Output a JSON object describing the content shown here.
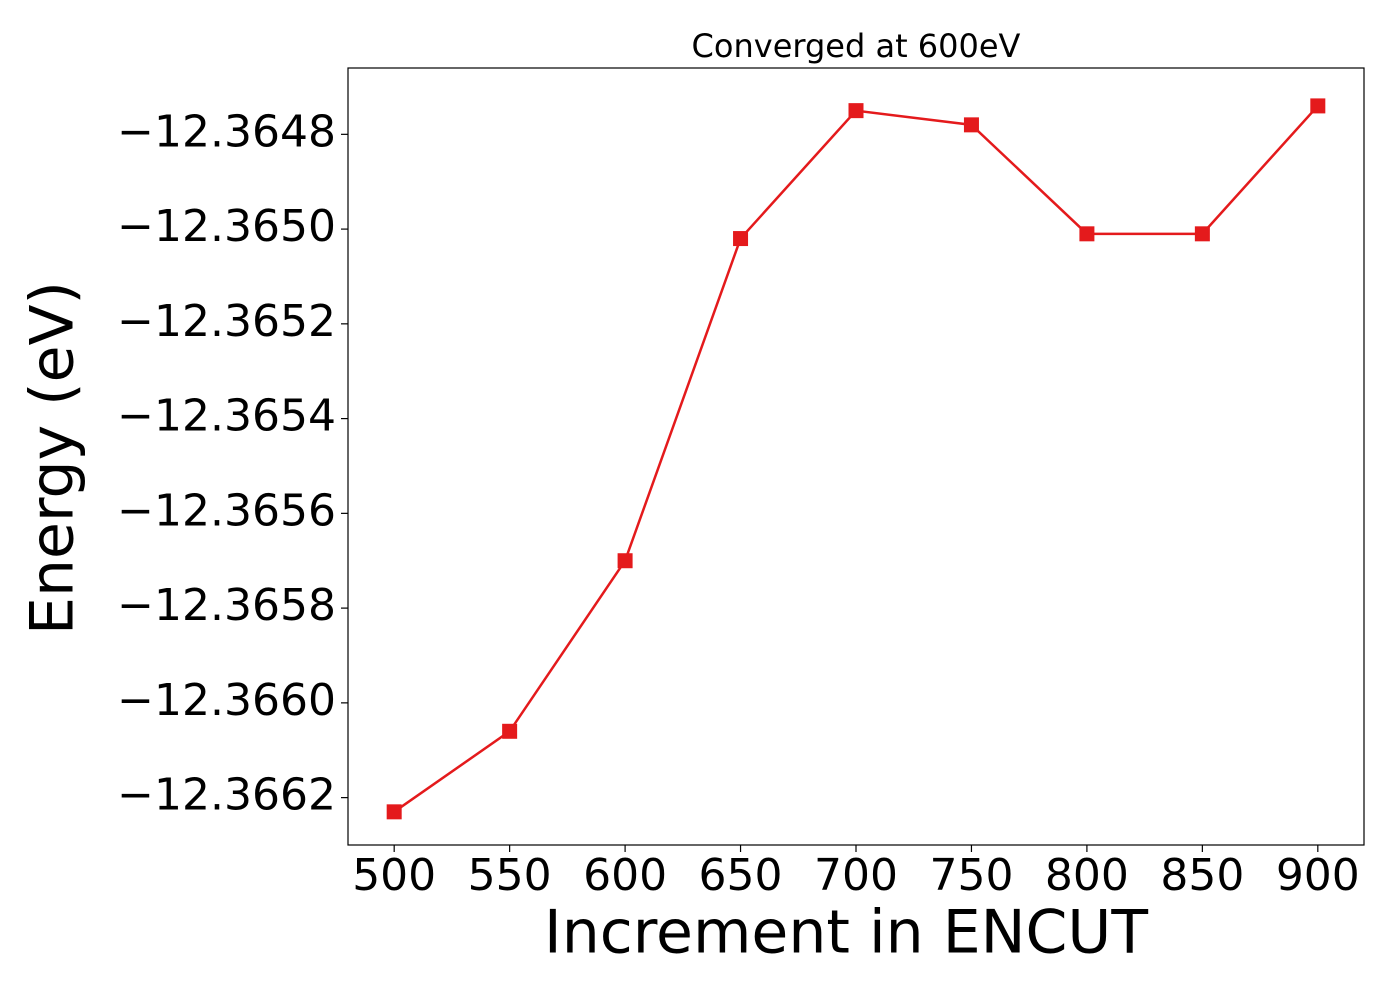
{
  "chart_data": {
    "type": "line",
    "title": "Converged at 600eV",
    "x_label": "Increment in ENCUT",
    "y_label": "Energy (eV)",
    "x": [
      500,
      550,
      600,
      650,
      700,
      750,
      800,
      850,
      900
    ],
    "series": [
      {
        "color": "#e41a1c",
        "marker": "square",
        "values": [
          -12.36623,
          -12.36606,
          -12.3657,
          -12.36502,
          -12.36475,
          -12.36478,
          -12.36501,
          -12.36501,
          -12.36474
        ]
      }
    ],
    "xlim": [
      480,
      920
    ],
    "xticks": [
      500,
      550,
      600,
      650,
      700,
      750,
      800,
      850,
      900
    ],
    "ylim": [
      -12.3663,
      -12.36466
    ],
    "yticks": [
      {
        "value": -12.3662,
        "label": "−12.3662"
      },
      {
        "value": -12.366,
        "label": "−12.3660"
      },
      {
        "value": -12.3658,
        "label": "−12.3658"
      },
      {
        "value": -12.3656,
        "label": "−12.3656"
      },
      {
        "value": -12.3654,
        "label": "−12.3654"
      },
      {
        "value": -12.3652,
        "label": "−12.3652"
      },
      {
        "value": -12.365,
        "label": "−12.3650"
      },
      {
        "value": -12.3648,
        "label": "−12.3648"
      }
    ],
    "grid": false
  }
}
